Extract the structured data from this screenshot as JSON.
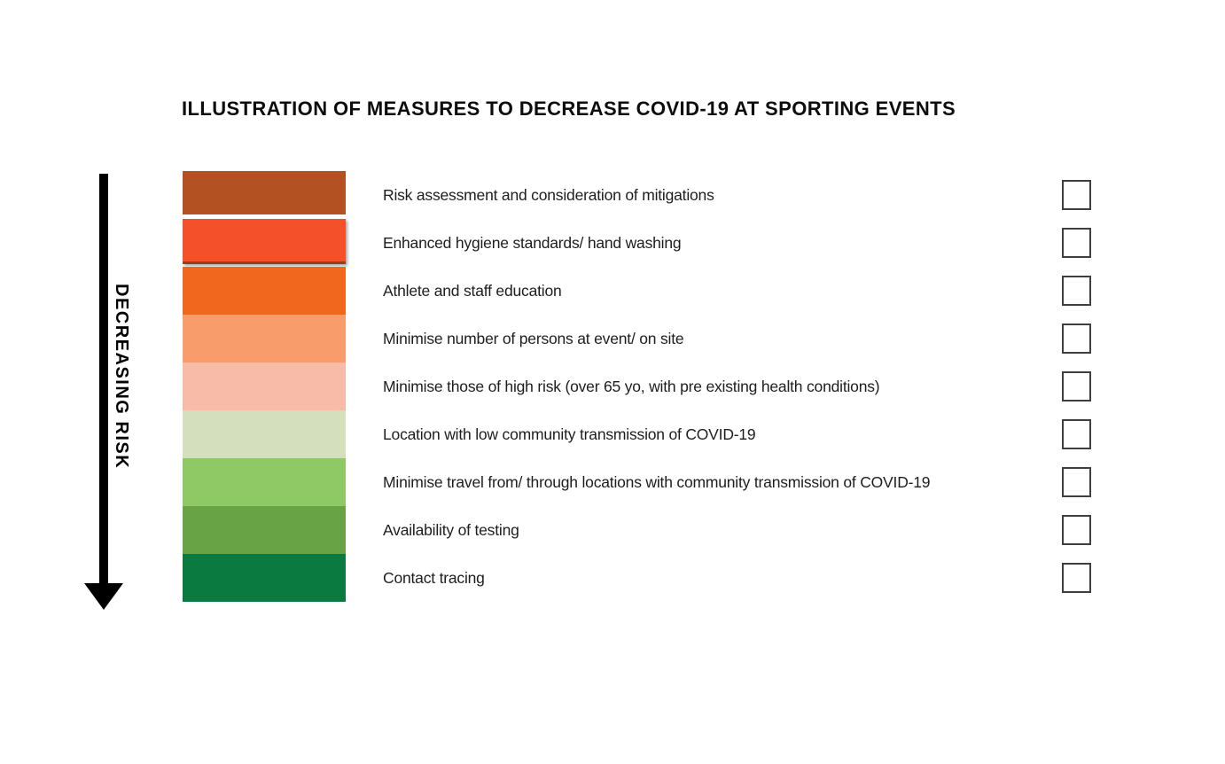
{
  "title": "ILLUSTRATION OF MEASURES TO DECREASE COVID-19 AT SPORTING EVENTS",
  "arrow": {
    "label": "DECREASING RISK",
    "color": "#000000",
    "direction": "down"
  },
  "measures": [
    {
      "label": "Risk assessment and consideration of mitigations",
      "color": "#b35123",
      "checked": false
    },
    {
      "label": "Enhanced hygiene standards/ hand washing",
      "color": "#f4512a",
      "checked": false
    },
    {
      "label": "Athlete and staff education",
      "color": "#f2671e",
      "checked": false
    },
    {
      "label": "Minimise number of persons at event/ on site",
      "color": "#f99c6c",
      "checked": false
    },
    {
      "label": "Minimise those of high risk (over 65 yo, with pre existing health conditions)",
      "color": "#f7bba7",
      "checked": false
    },
    {
      "label": "Location with low community transmission of COVID-19",
      "color": "#d3dfbd",
      "checked": false
    },
    {
      "label": "Minimise travel from/ through locations with community transmission of COVID-19",
      "color": "#8ec966",
      "checked": false
    },
    {
      "label": "Availability of testing",
      "color": "#68a446",
      "checked": false
    },
    {
      "label": "Contact tracing",
      "color": "#0b7a40",
      "checked": false
    }
  ],
  "colors": {
    "title_text": "#0d0d0d",
    "label_text": "#1f1d1d",
    "checkbox_border": "#3f3f3f",
    "background": "#ffffff"
  }
}
